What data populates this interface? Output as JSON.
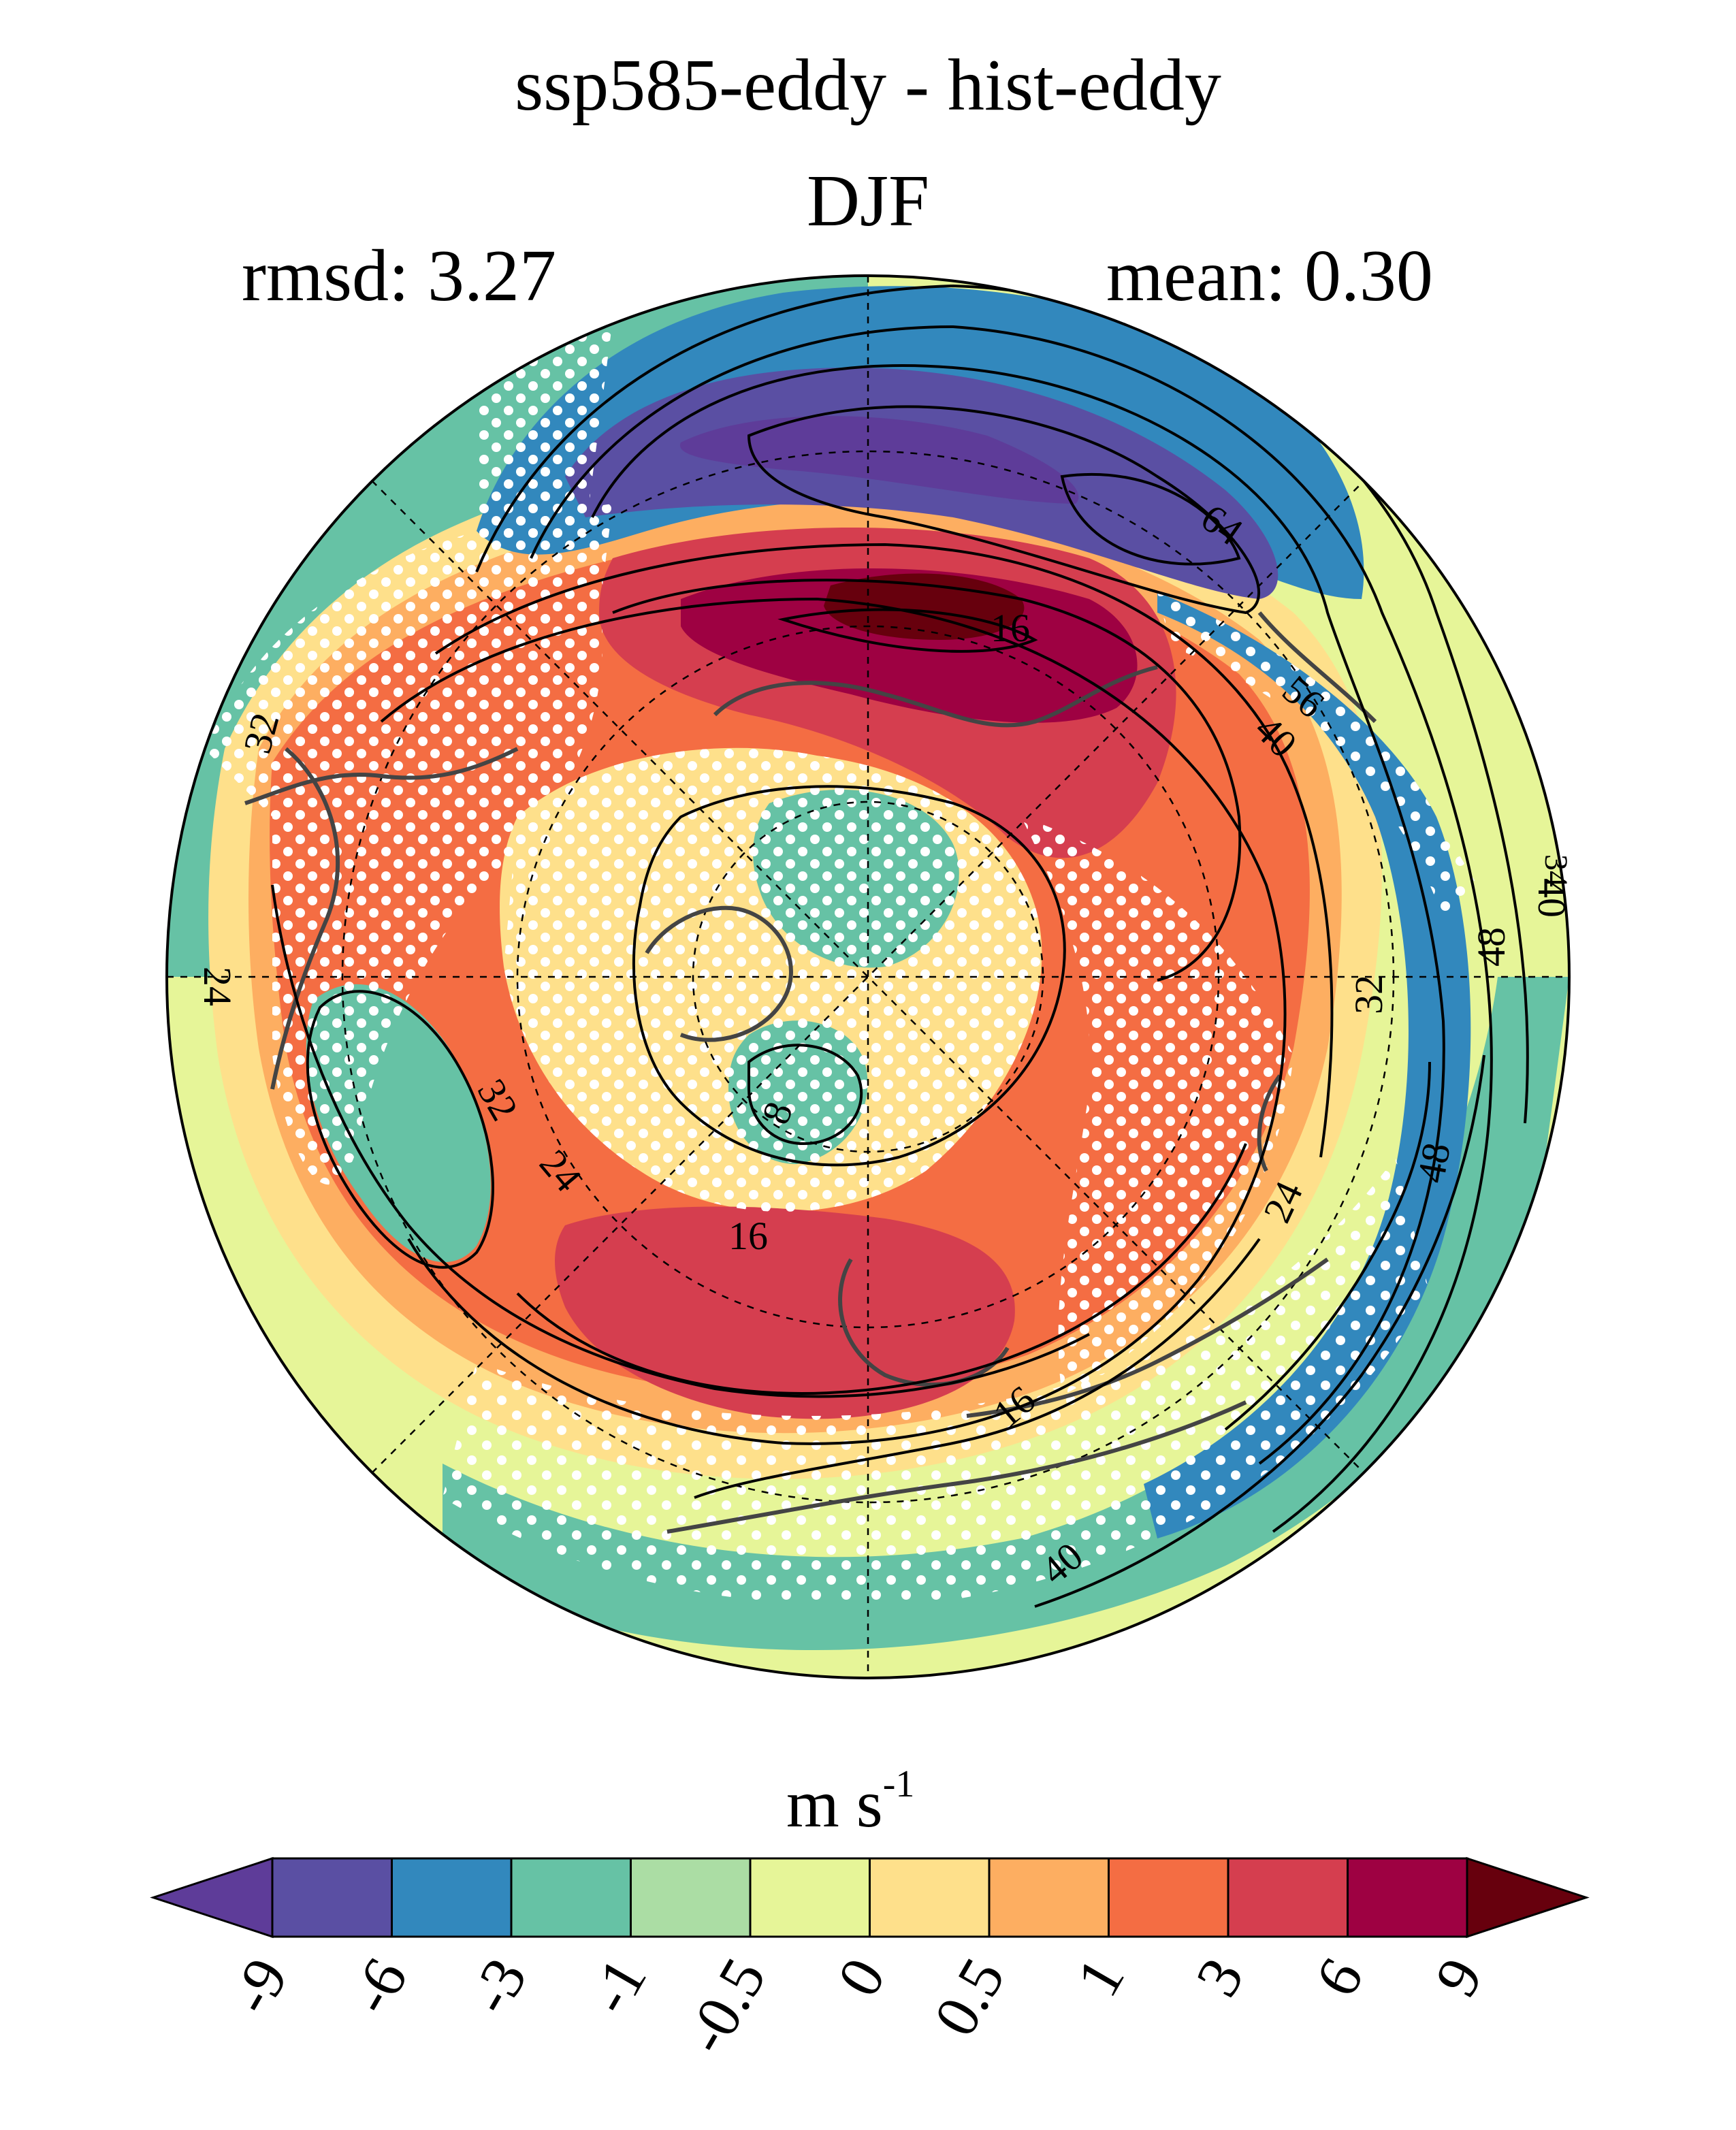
{
  "title": "ssp585-eddy - hist-eddy",
  "season": "DJF",
  "stats": {
    "rmsd": "rmsd: 3.27",
    "mean": "mean: 0.30"
  },
  "colorbar": {
    "unit_base": "m s",
    "unit_exp": "-1",
    "levels": [
      "-9",
      "-6",
      "-3",
      "-1",
      "-0.5",
      "0",
      "0.5",
      "1",
      "3",
      "6",
      "9"
    ],
    "colors": [
      "#5e3c99",
      "#5a4fa3",
      "#3288bd",
      "#66c2a5",
      "#abdda4",
      "#e6f598",
      "#fee08b",
      "#fdae61",
      "#f46d43",
      "#d53e4f",
      "#9e0142",
      "#67000d"
    ]
  },
  "contour_labels": [
    "64",
    "16",
    "56",
    "40",
    "32",
    "24",
    "32",
    "24",
    "16",
    "8",
    "32",
    "48",
    "24",
    "48",
    "40",
    "16",
    "40",
    "34"
  ],
  "map": {
    "projection": "north-polar-stereographic",
    "stippling": "white-dots"
  }
}
